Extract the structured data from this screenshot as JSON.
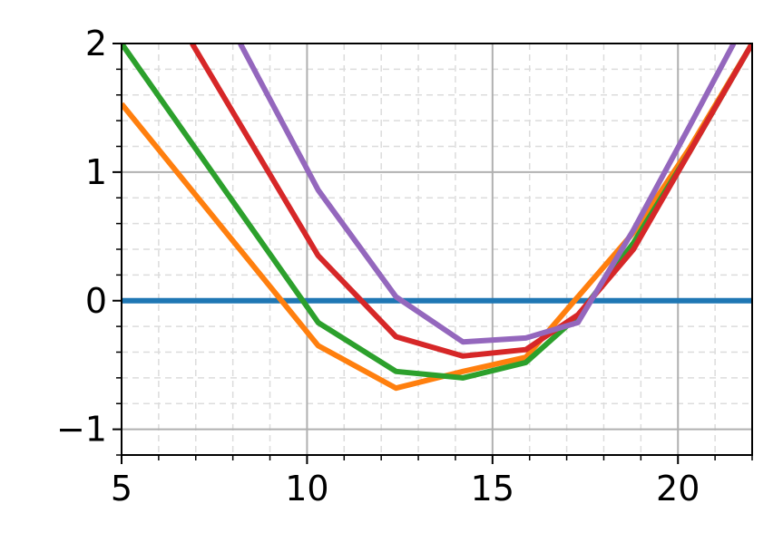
{
  "chart_data": {
    "type": "line",
    "title": "",
    "xlabel": "",
    "ylabel": "",
    "xlim": [
      5,
      22
    ],
    "ylim": [
      -1.2,
      2
    ],
    "x_major_ticks": [
      5,
      10,
      15,
      20
    ],
    "x_tick_labels": [
      "5",
      "10",
      "15",
      "20"
    ],
    "y_major_ticks": [
      -1,
      0,
      1,
      2
    ],
    "y_tick_labels": [
      "−1",
      "0",
      "1",
      "2"
    ],
    "x_minor_step": 1,
    "y_minor_step": 0.2,
    "grid": {
      "major": true,
      "minor": true
    },
    "legend": "none",
    "series": [
      {
        "color": "#1f77b4",
        "x": [
          5,
          22
        ],
        "y": [
          0,
          0
        ]
      },
      {
        "color": "#ff7f0e",
        "x": [
          5,
          10.3,
          12.4,
          14.2,
          15.9,
          17.3,
          18.8,
          20.3,
          22
        ],
        "y": [
          1.53,
          -0.35,
          -0.68,
          -0.55,
          -0.44,
          0.03,
          0.53,
          1.18,
          2.0
        ]
      },
      {
        "color": "#2ca02c",
        "x": [
          5,
          10.3,
          12.4,
          14.2,
          15.9,
          17.3,
          18.8,
          20.3,
          22
        ],
        "y": [
          2.0,
          -0.17,
          -0.55,
          -0.6,
          -0.48,
          -0.12,
          0.45,
          1.15,
          2.0
        ]
      },
      {
        "color": "#d62728",
        "x": [
          6.9,
          10.3,
          12.4,
          14.2,
          15.9,
          17.3,
          18.8,
          20.3,
          22
        ],
        "y": [
          2.0,
          0.35,
          -0.28,
          -0.43,
          -0.38,
          -0.11,
          0.4,
          1.15,
          2.0
        ]
      },
      {
        "color": "#9467bd",
        "x": [
          8.2,
          10.3,
          12.4,
          14.2,
          15.9,
          17.3,
          18.8,
          20.3,
          21.5
        ],
        "y": [
          2.0,
          0.86,
          0.03,
          -0.32,
          -0.29,
          -0.17,
          0.55,
          1.35,
          2.0
        ]
      }
    ]
  }
}
